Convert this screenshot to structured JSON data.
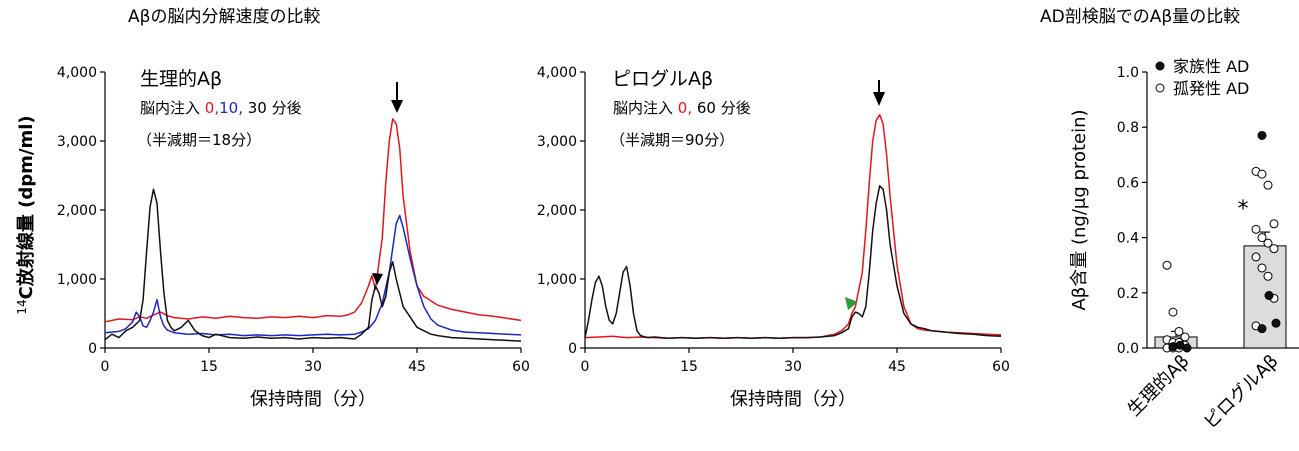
{
  "titles": {
    "left": "Aβの脳内分解速度の比較",
    "right": "AD剖検脳でのAβ量の比較"
  },
  "colors": {
    "t0": "#e8141b",
    "t10": "#1a26c8",
    "t30": "#111111",
    "green": "#2e9a3c",
    "bar": "#dcdcdc"
  },
  "chart_data": [
    {
      "type": "line",
      "title": "生理的Aβ",
      "note": {
        "prefix": "脳内注入 ",
        "t0": "0",
        "sep1": ",",
        "t10": "10",
        "sep2": ",",
        "rest": " 30 分後"
      },
      "halflife": "（半減期＝18分）",
      "xlabel": "保持時間（分）",
      "ylabel_sup": "14",
      "ylabel": "C放射線量 (dpm/ml)",
      "xlim": [
        0,
        60
      ],
      "ylim": [
        0,
        4000
      ],
      "xticks": [
        "0",
        "15",
        "30",
        "45",
        "60"
      ],
      "yticks": [
        "0",
        "1,000",
        "2,000",
        "3,000",
        "4,000"
      ],
      "series": [
        {
          "name": "0",
          "color": "#e8141b",
          "x": [
            0,
            2,
            4,
            5,
            6,
            7,
            8,
            9,
            10,
            12,
            14,
            16,
            18,
            20,
            22,
            24,
            26,
            28,
            30,
            32,
            34,
            35,
            36,
            37,
            38,
            38.5,
            39,
            40,
            40.5,
            41,
            41.5,
            42,
            42.5,
            43,
            44,
            45,
            46,
            48,
            50,
            52,
            54,
            56,
            58,
            60
          ],
          "y": [
            380,
            420,
            410,
            450,
            430,
            480,
            520,
            470,
            440,
            420,
            450,
            430,
            460,
            440,
            430,
            450,
            440,
            460,
            440,
            470,
            460,
            480,
            520,
            650,
            900,
            1050,
            850,
            1600,
            2400,
            3000,
            3320,
            3250,
            2900,
            2200,
            1400,
            900,
            750,
            620,
            560,
            520,
            480,
            460,
            430,
            400
          ]
        },
        {
          "name": "10",
          "color": "#1a26c8",
          "x": [
            0,
            2,
            3,
            4,
            4.5,
            5,
            5.5,
            6,
            6.5,
            7,
            7.5,
            8,
            8.5,
            9,
            10,
            12,
            14,
            16,
            18,
            20,
            22,
            24,
            26,
            28,
            30,
            32,
            34,
            36,
            37,
            38,
            39,
            40,
            41,
            42,
            42.5,
            43,
            44,
            45,
            46,
            47,
            48,
            50,
            52,
            54,
            56,
            58,
            60
          ],
          "y": [
            220,
            240,
            280,
            380,
            520,
            450,
            320,
            300,
            400,
            520,
            700,
            450,
            320,
            260,
            220,
            200,
            210,
            190,
            200,
            180,
            190,
            180,
            190,
            180,
            190,
            200,
            190,
            200,
            230,
            280,
            400,
            650,
            1100,
            1800,
            1920,
            1750,
            1300,
            900,
            600,
            420,
            330,
            260,
            230,
            220,
            210,
            200,
            190
          ]
        },
        {
          "name": "30",
          "color": "#111111",
          "x": [
            0,
            1,
            2,
            3,
            4,
            5,
            5.5,
            6,
            6.5,
            7,
            7.5,
            8,
            8.5,
            9,
            9.5,
            10,
            11,
            12,
            13,
            14,
            15,
            16,
            18,
            20,
            22,
            24,
            26,
            28,
            30,
            32,
            34,
            36,
            37,
            38,
            38.5,
            39,
            39.5,
            40,
            40.5,
            41,
            41.5,
            42,
            42.5,
            43,
            44,
            45,
            46,
            47,
            48,
            50,
            52,
            54,
            56,
            58,
            60
          ],
          "y": [
            120,
            200,
            150,
            250,
            300,
            400,
            700,
            1400,
            2050,
            2300,
            2100,
            1400,
            800,
            400,
            300,
            250,
            300,
            400,
            250,
            180,
            150,
            200,
            150,
            140,
            160,
            140,
            150,
            130,
            150,
            140,
            150,
            130,
            200,
            300,
            700,
            900,
            800,
            600,
            750,
            1100,
            1250,
            1000,
            800,
            600,
            450,
            300,
            250,
            200,
            180,
            150,
            140,
            130,
            120,
            110,
            100
          ]
        }
      ]
    },
    {
      "type": "line",
      "title": "ピログルAβ",
      "note": {
        "prefix": "脳内注入 ",
        "t0": "0",
        "sep1": ",",
        "rest": " 60 分後"
      },
      "halflife": "（半減期＝90分）",
      "xlabel": "保持時間（分）",
      "xlim": [
        0,
        60
      ],
      "ylim": [
        0,
        4000
      ],
      "xticks": [
        "0",
        "15",
        "30",
        "45",
        "60"
      ],
      "yticks": [
        "0",
        "1,000",
        "2,000",
        "3,000",
        "4,000"
      ],
      "series": [
        {
          "name": "0",
          "color": "#e8141b",
          "x": [
            0,
            2,
            4,
            6,
            8,
            10,
            12,
            14,
            16,
            18,
            20,
            22,
            24,
            26,
            28,
            30,
            32,
            34,
            36,
            37,
            38,
            38.5,
            39,
            40,
            40.5,
            41,
            41.5,
            42,
            42.5,
            43,
            43.5,
            44,
            45,
            46,
            47,
            48,
            49,
            50,
            52,
            54,
            56,
            58,
            60
          ],
          "y": [
            150,
            160,
            170,
            150,
            160,
            150,
            140,
            150,
            140,
            150,
            140,
            150,
            140,
            150,
            140,
            150,
            150,
            160,
            200,
            250,
            350,
            500,
            600,
            1100,
            1700,
            2400,
            3000,
            3300,
            3380,
            3250,
            2800,
            2200,
            1200,
            600,
            350,
            280,
            260,
            250,
            230,
            220,
            210,
            200,
            190
          ]
        },
        {
          "name": "60",
          "color": "#111111",
          "x": [
            0,
            0.5,
            1,
            1.5,
            2,
            2.5,
            3,
            3.5,
            4,
            4.5,
            5,
            5.5,
            6,
            6.5,
            7,
            7.5,
            8,
            9,
            10,
            12,
            14,
            16,
            18,
            20,
            22,
            24,
            26,
            28,
            30,
            32,
            34,
            36,
            37,
            38,
            38.5,
            39,
            39.5,
            40,
            40.5,
            41,
            41.5,
            42,
            42.5,
            43,
            43.5,
            44,
            45,
            46,
            47,
            48,
            49,
            50,
            52,
            54,
            56,
            58,
            60
          ],
          "y": [
            150,
            400,
            700,
            950,
            1040,
            900,
            600,
            400,
            350,
            500,
            800,
            1100,
            1180,
            900,
            500,
            250,
            180,
            150,
            160,
            140,
            150,
            140,
            150,
            140,
            150,
            140,
            150,
            140,
            150,
            150,
            160,
            180,
            220,
            280,
            450,
            520,
            500,
            450,
            600,
            1100,
            1700,
            2100,
            2350,
            2300,
            2000,
            1500,
            900,
            500,
            350,
            300,
            280,
            250,
            230,
            210,
            200,
            180,
            170
          ]
        }
      ]
    },
    {
      "type": "bar",
      "ylabel": "Aβ含量 (ng/μg protein)",
      "ylim": [
        0,
        1.0
      ],
      "yticks": [
        "0.0",
        "0.2",
        "0.4",
        "0.6",
        "0.8",
        "1.0"
      ],
      "categories": [
        "生理的Aβ",
        "ピログルAβ"
      ],
      "values": [
        0.04,
        0.37
      ],
      "errors": [
        0.02,
        0.05
      ],
      "significance": [
        "",
        "*"
      ],
      "legend": [
        {
          "label": "家族性 AD",
          "marker": "filled"
        },
        {
          "label": "孤発性 AD",
          "marker": "open"
        }
      ],
      "points": [
        {
          "category": 0,
          "familial": [
            0.005,
            0.01,
            0.0
          ],
          "sporadic": [
            0.3,
            0.13,
            0.06,
            0.04,
            0.03,
            0.02,
            0.02,
            0.01,
            0.0,
            0.0,
            0.0
          ]
        },
        {
          "category": 1,
          "familial": [
            0.77,
            0.19,
            0.09,
            0.07
          ],
          "sporadic": [
            0.64,
            0.63,
            0.59,
            0.45,
            0.43,
            0.4,
            0.38,
            0.36,
            0.33,
            0.29,
            0.26,
            0.18,
            0.08
          ]
        }
      ]
    }
  ]
}
